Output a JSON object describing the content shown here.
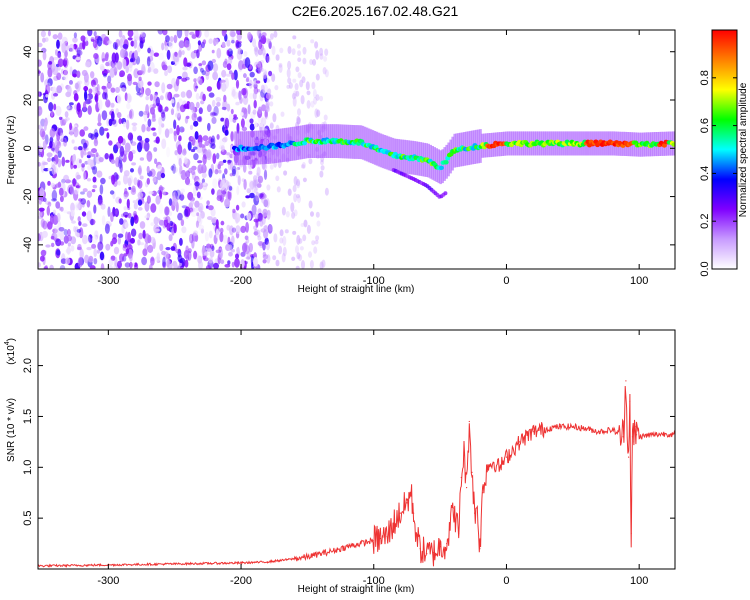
{
  "title": "C2E6.2025.167.02.48.G21",
  "chart_data": [
    {
      "type": "heatmap",
      "xlabel": "Height of straight line (km)",
      "ylabel": "Frequency (Hz)",
      "xlim": [
        -353,
        127
      ],
      "ylim": [
        -50,
        49
      ],
      "xticks": [
        -300,
        -200,
        -100,
        0,
        100
      ],
      "yticks": [
        -40,
        -20,
        0,
        20,
        40
      ],
      "xtick_labels": [
        "-300",
        "-200",
        "-100",
        "0",
        "100"
      ],
      "ytick_labels": [
        "-40",
        "-20",
        "0",
        "20",
        "40"
      ],
      "colorbar": {
        "label": "Normalized spectral amplitude",
        "range": [
          0.0,
          1.0
        ],
        "ticks": [
          0.0,
          0.2,
          0.4,
          0.6,
          0.8
        ],
        "tick_labels": [
          "0.0",
          "0.2",
          "0.4",
          "0.6",
          "0.8"
        ],
        "colormap": [
          "#ffffff",
          "#c89bff",
          "#7f00ff",
          "#0000ff",
          "#00ffff",
          "#00ff00",
          "#ffff00",
          "#ff8000",
          "#ff0000"
        ]
      },
      "ridge": {
        "x": [
          -200,
          -180,
          -160,
          -150,
          -130,
          -110,
          -95,
          -85,
          -70,
          -60,
          -50,
          -45,
          -40,
          -30,
          -20,
          0,
          40,
          80,
          100,
          125
        ],
        "y": [
          0,
          0.5,
          2,
          3,
          3,
          2.5,
          -1,
          -3,
          -4,
          -5,
          -8,
          -5,
          -1,
          0,
          1,
          2,
          2,
          2,
          1.5,
          2
        ]
      },
      "grid": false
    },
    {
      "type": "line",
      "xlabel": "Height of straight line (km)",
      "ylabel": "SNR (10 * v/v)",
      "yscale_label": "(x10",
      "yscale_exponent": "4",
      "yscale_suffix": ")",
      "xlim": [
        -353,
        127
      ],
      "ylim": [
        0,
        2.35
      ],
      "xticks": [
        -300,
        -200,
        -100,
        0,
        100
      ],
      "yticks": [
        0.5,
        1.0,
        1.5,
        2.0
      ],
      "xtick_labels": [
        "-300",
        "-200",
        "-100",
        "0",
        "100"
      ],
      "ytick_labels": [
        "0.5",
        "1.0",
        "1.5",
        "2.0"
      ],
      "color": "#ee3333",
      "series": [
        {
          "x": [
            -353,
            -300,
            -250,
            -200,
            -180,
            -160,
            -150,
            -140,
            -130,
            -120,
            -110,
            -100,
            -95,
            -90,
            -85,
            -80,
            -75,
            -72,
            -70,
            -68,
            -65,
            -60,
            -55,
            -50,
            -45,
            -40,
            -36,
            -34,
            -32,
            -30,
            -28,
            -26,
            -24,
            -22,
            -20,
            -18,
            -15,
            -10,
            -5,
            0,
            10,
            20,
            30,
            40,
            50,
            60,
            70,
            80,
            88,
            90,
            92,
            93,
            94,
            95,
            96,
            97,
            98,
            100,
            110,
            120,
            127
          ],
          "y": [
            0.03,
            0.04,
            0.05,
            0.06,
            0.07,
            0.1,
            0.12,
            0.15,
            0.18,
            0.22,
            0.25,
            0.28,
            0.3,
            0.32,
            0.45,
            0.55,
            0.65,
            0.75,
            0.55,
            0.35,
            0.2,
            0.15,
            0.16,
            0.22,
            0.25,
            0.6,
            0.35,
            0.9,
            1.15,
            0.8,
            1.45,
            0.95,
            0.55,
            0.6,
            0.2,
            0.75,
            1.0,
            1.05,
            1.0,
            1.1,
            1.25,
            1.35,
            1.38,
            1.4,
            1.4,
            1.38,
            1.35,
            1.37,
            1.3,
            1.85,
            1.1,
            1.65,
            0.35,
            1.3,
            1.25,
            1.4,
            1.32,
            1.3,
            1.32,
            1.33,
            1.32
          ]
        }
      ],
      "grid": false
    }
  ]
}
